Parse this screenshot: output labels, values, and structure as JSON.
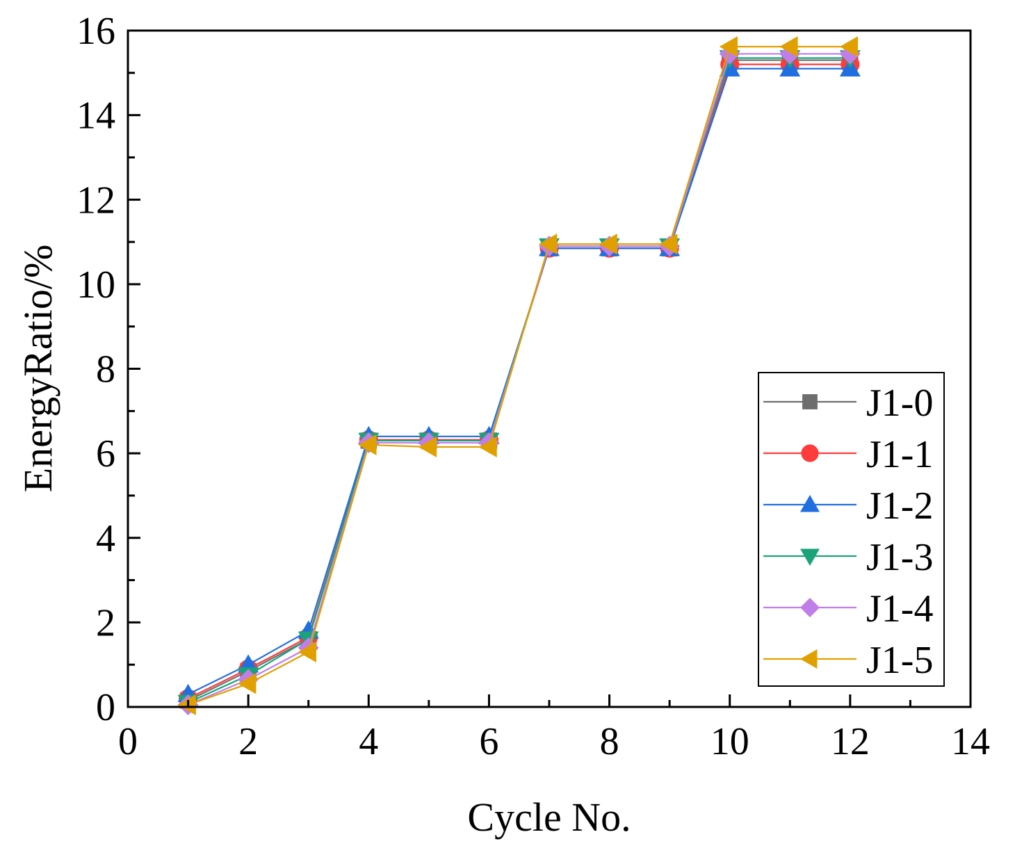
{
  "chart_data": {
    "type": "line",
    "title": "",
    "xlabel": "Cycle No.",
    "ylabel": "EnergyRatio/%",
    "xlim": [
      0,
      14
    ],
    "ylim": [
      0,
      16
    ],
    "xticks": [
      0,
      2,
      4,
      6,
      8,
      10,
      12,
      14
    ],
    "yticks": [
      0,
      2,
      4,
      6,
      8,
      10,
      12,
      14,
      16
    ],
    "grid": false,
    "legend_position": "bottom-right",
    "x": [
      1,
      2,
      3,
      4,
      5,
      6,
      7,
      8,
      9,
      10,
      11,
      12
    ],
    "series": [
      {
        "name": "J1-0",
        "color": "#6e6e6e",
        "marker": "square",
        "values": [
          0.15,
          0.85,
          1.6,
          6.3,
          6.3,
          6.3,
          10.85,
          10.85,
          10.85,
          15.3,
          15.3,
          15.3
        ]
      },
      {
        "name": "J1-1",
        "color": "#ff3b3b",
        "marker": "circle",
        "values": [
          0.2,
          0.9,
          1.65,
          6.32,
          6.32,
          6.32,
          10.85,
          10.85,
          10.85,
          15.2,
          15.2,
          15.2
        ]
      },
      {
        "name": "J1-2",
        "color": "#1f6fe0",
        "marker": "triangle-up",
        "values": [
          0.3,
          1.0,
          1.8,
          6.4,
          6.4,
          6.4,
          10.85,
          10.85,
          10.85,
          15.1,
          15.1,
          15.1
        ]
      },
      {
        "name": "J1-3",
        "color": "#1aa37a",
        "marker": "triangle-down",
        "values": [
          0.1,
          0.75,
          1.6,
          6.3,
          6.3,
          6.3,
          10.9,
          10.9,
          10.9,
          15.35,
          15.35,
          15.35
        ]
      },
      {
        "name": "J1-4",
        "color": "#c07ee8",
        "marker": "diamond",
        "values": [
          0.05,
          0.65,
          1.4,
          6.25,
          6.25,
          6.25,
          10.9,
          10.9,
          10.9,
          15.45,
          15.45,
          15.45
        ]
      },
      {
        "name": "J1-5",
        "color": "#e0a000",
        "marker": "triangle-left",
        "values": [
          0.05,
          0.55,
          1.3,
          6.2,
          6.15,
          6.15,
          10.95,
          10.95,
          10.95,
          15.62,
          15.62,
          15.62
        ]
      }
    ]
  }
}
